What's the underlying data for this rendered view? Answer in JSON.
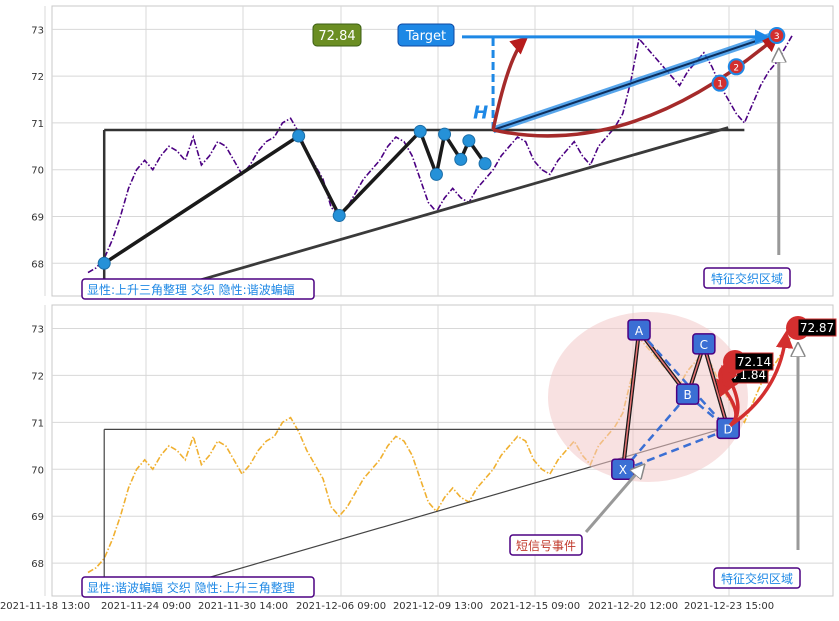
{
  "chart_data": [
    {
      "type": "line",
      "panel": "top",
      "x_ticks": [
        "2021-11-18 13:00",
        "2021-11-24 09:00",
        "2021-11-30 14:00",
        "2021-12-06 09:00",
        "2021-12-09 13:00",
        "2021-12-15 09:00",
        "2021-12-20 12:00",
        "2021-12-23 15:00"
      ],
      "y_ticks": [
        68,
        69,
        70,
        71,
        72,
        73
      ],
      "ylim": [
        67.3,
        73.5
      ],
      "grid": true,
      "series": [
        {
          "role": "price",
          "color": "#4b0082",
          "style": "dash-dot",
          "values": [
            67.8,
            67.9,
            68.1,
            68.5,
            69.0,
            69.6,
            70.0,
            70.2,
            70.0,
            70.3,
            70.5,
            70.4,
            70.2,
            70.7,
            70.1,
            70.3,
            70.6,
            70.5,
            70.2,
            69.9,
            70.1,
            70.4,
            70.6,
            70.7,
            71.0,
            71.1,
            70.8,
            70.4,
            70.1,
            69.8,
            69.2,
            69.0,
            69.2,
            69.5,
            69.8,
            70.0,
            70.2,
            70.5,
            70.7,
            70.6,
            70.3,
            69.8,
            69.3,
            69.1,
            69.4,
            69.6,
            69.4,
            69.3,
            69.6,
            69.8,
            70.0,
            70.3,
            70.5,
            70.7,
            70.6,
            70.2,
            70.0,
            69.9,
            70.2,
            70.4,
            70.6,
            70.3,
            70.1,
            70.5,
            70.7,
            70.9,
            71.2,
            71.9,
            72.8,
            72.6,
            72.4,
            72.2,
            72.0,
            71.8,
            72.1,
            72.3,
            72.5,
            72.2,
            71.8,
            71.5,
            71.2,
            71.0,
            71.4,
            71.8,
            72.1,
            72.3,
            72.6,
            72.9
          ]
        }
      ],
      "points": [
        {
          "label": "",
          "x_index": 2,
          "y": 68.0
        },
        {
          "label": "",
          "x_index": 26,
          "y": 70.72
        },
        {
          "label": "",
          "x_index": 31,
          "y": 69.02
        },
        {
          "label": "",
          "x_index": 41,
          "y": 70.82
        },
        {
          "label": "",
          "x_index": 43,
          "y": 69.9
        },
        {
          "label": "",
          "x_index": 44,
          "y": 70.76
        },
        {
          "label": "",
          "x_index": 46,
          "y": 70.22
        },
        {
          "label": "",
          "x_index": 47,
          "y": 70.62
        },
        {
          "label": "",
          "x_index": 49,
          "y": 70.13
        }
      ],
      "markers": [
        {
          "label": "1",
          "x_index": 78,
          "y": 71.85
        },
        {
          "label": "2",
          "x_index": 80,
          "y": 72.2
        },
        {
          "label": "3",
          "x_index": 85,
          "y": 72.87
        }
      ],
      "annotations": {
        "target_label": "Target",
        "target_value": "72.84",
        "h_label": "H",
        "box_text": "显性:上升三角整理 交织 隐性:谐波蝙蝠",
        "zone_label": "特征交织区域"
      }
    },
    {
      "type": "line",
      "panel": "bottom",
      "x_ticks": [
        "2021-11-18 13:00",
        "2021-11-24 09:00",
        "2021-11-30 14:00",
        "2021-12-06 09:00",
        "2021-12-09 13:00",
        "2021-12-15 09:00",
        "2021-12-20 12:00",
        "2021-12-23 15:00"
      ],
      "y_ticks": [
        68,
        69,
        70,
        71,
        72,
        73
      ],
      "ylim": [
        67.3,
        73.5
      ],
      "grid": true,
      "series": [
        {
          "role": "price",
          "color": "#f0b030",
          "style": "dash-dot",
          "values": [
            67.8,
            67.9,
            68.1,
            68.5,
            69.0,
            69.6,
            70.0,
            70.2,
            70.0,
            70.3,
            70.5,
            70.4,
            70.2,
            70.7,
            70.1,
            70.3,
            70.6,
            70.5,
            70.2,
            69.9,
            70.1,
            70.4,
            70.6,
            70.7,
            71.0,
            71.1,
            70.8,
            70.4,
            70.1,
            69.8,
            69.2,
            69.0,
            69.2,
            69.5,
            69.8,
            70.0,
            70.2,
            70.5,
            70.7,
            70.6,
            70.3,
            69.8,
            69.3,
            69.1,
            69.4,
            69.6,
            69.4,
            69.3,
            69.6,
            69.8,
            70.0,
            70.3,
            70.5,
            70.7,
            70.6,
            70.2,
            70.0,
            69.9,
            70.2,
            70.4,
            70.6,
            70.3,
            70.1,
            70.5,
            70.7,
            70.9,
            71.2,
            71.9,
            72.8,
            72.6,
            72.4,
            72.2,
            72.0,
            71.8,
            72.1,
            72.3,
            72.5,
            72.2,
            71.8,
            71.5,
            71.2,
            71.0,
            71.4,
            71.8,
            72.1,
            72.3,
            72.6,
            72.9
          ]
        }
      ],
      "points": [
        {
          "label": "X",
          "x_index": 66,
          "y": 69.98
        },
        {
          "label": "A",
          "x_index": 68,
          "y": 72.95
        },
        {
          "label": "B",
          "x_index": 74,
          "y": 71.58
        },
        {
          "label": "C",
          "x_index": 76,
          "y": 72.65
        },
        {
          "label": "D",
          "x_index": 79,
          "y": 70.85
        }
      ],
      "price_labels": [
        {
          "text": "71.84",
          "x_index": 82,
          "y": 71.84
        },
        {
          "text": "72.14",
          "x_index": 83,
          "y": 72.14
        },
        {
          "text": "72.87",
          "x_index": 86,
          "y": 72.87
        }
      ],
      "annotations": {
        "box_text": "显性:谐波蝙蝠 交织 隐性:上升三角整理",
        "event_label": "短信号事件",
        "zone_label": "特征交织区域"
      }
    }
  ],
  "colors": {
    "accent_blue": "#1e88e5",
    "marker_blue": "#2591d8",
    "dark_purple": "#4b0082",
    "orange": "#f0b030",
    "red": "#d32f2f",
    "green_box": "#6b8e23"
  }
}
